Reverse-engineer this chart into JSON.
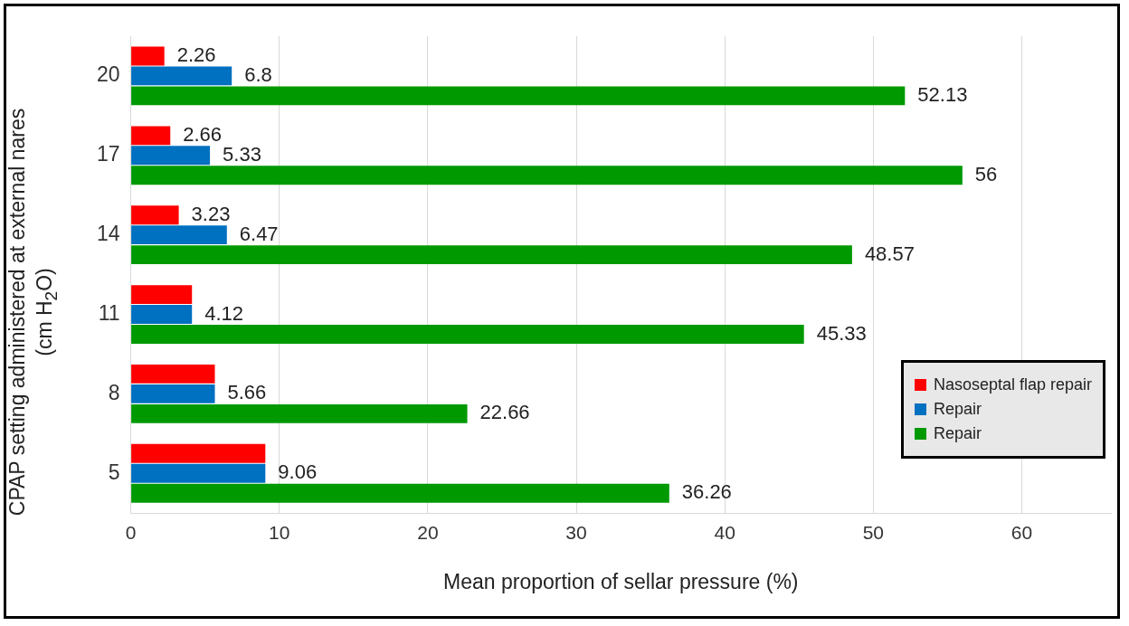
{
  "chart_data": {
    "type": "bar",
    "orientation": "horizontal",
    "xlabel": "Mean proportion of sellar pressure (%)",
    "ylabel": "CPAP setting administered at external nares (cm H$_{2}$O)",
    "categories": [
      "20",
      "17",
      "14",
      "11",
      "8",
      "5"
    ],
    "series": [
      {
        "name": "Nasoseptal flap repair",
        "color": "#ff0000",
        "values": [
          2.26,
          2.66,
          3.23,
          4.12,
          5.66,
          9.06
        ],
        "value_labels": [
          "2.26",
          "2.66",
          "3.23",
          null,
          null,
          null
        ]
      },
      {
        "name": "Repair",
        "color": "#0070c0",
        "values": [
          6.8,
          5.33,
          6.47,
          4.12,
          5.66,
          9.06
        ],
        "value_labels": [
          "6.8",
          "5.33",
          "6.47",
          "4.12",
          "5.66",
          "9.06"
        ]
      },
      {
        "name": "Repair",
        "color": "#009900",
        "values": [
          52.13,
          56,
          48.57,
          45.33,
          22.66,
          36.26
        ],
        "value_labels": [
          "52.13",
          "56",
          "48.57",
          "45.33",
          "22.66",
          "36.26"
        ]
      }
    ],
    "xlim": [
      0,
      66
    ],
    "xticks": [
      0,
      10,
      20,
      30,
      40,
      50,
      60
    ],
    "grid": "x",
    "legend": "bottom right"
  }
}
